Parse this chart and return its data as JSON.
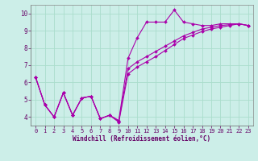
{
  "xlabel": "Windchill (Refroidissement éolien,°C)",
  "background_color": "#cceee8",
  "grid_color": "#aaddcc",
  "line_color": "#aa00aa",
  "x_data": [
    0,
    1,
    2,
    3,
    4,
    5,
    6,
    7,
    8,
    9,
    10,
    11,
    12,
    13,
    14,
    15,
    16,
    17,
    18,
    19,
    20,
    21,
    22,
    23
  ],
  "series1": [
    6.3,
    4.7,
    4.0,
    5.4,
    4.1,
    5.1,
    5.2,
    3.9,
    4.1,
    3.8,
    7.4,
    8.6,
    9.5,
    9.5,
    9.5,
    10.2,
    9.5,
    9.4,
    9.3,
    9.3,
    9.4,
    9.4,
    9.4,
    9.3
  ],
  "series2": [
    6.3,
    4.7,
    4.0,
    5.4,
    4.1,
    5.1,
    5.2,
    3.9,
    4.1,
    3.75,
    6.8,
    7.2,
    7.5,
    7.8,
    8.1,
    8.4,
    8.7,
    8.9,
    9.1,
    9.2,
    9.3,
    9.35,
    9.4,
    9.3
  ],
  "series3": [
    6.3,
    4.7,
    4.0,
    5.4,
    4.1,
    5.1,
    5.2,
    3.9,
    4.1,
    3.7,
    6.5,
    6.9,
    7.2,
    7.5,
    7.85,
    8.2,
    8.55,
    8.75,
    8.95,
    9.1,
    9.2,
    9.3,
    9.4,
    9.3
  ],
  "xlim": [
    -0.5,
    23.5
  ],
  "ylim": [
    3.5,
    10.5
  ],
  "yticks": [
    4,
    5,
    6,
    7,
    8,
    9,
    10
  ],
  "xticks": [
    0,
    1,
    2,
    3,
    4,
    5,
    6,
    7,
    8,
    9,
    10,
    11,
    12,
    13,
    14,
    15,
    16,
    17,
    18,
    19,
    20,
    21,
    22,
    23
  ],
  "marker": "D",
  "markersize": 2.0,
  "linewidth": 0.8,
  "tick_fontsize": 5.0,
  "xlabel_fontsize": 5.5
}
